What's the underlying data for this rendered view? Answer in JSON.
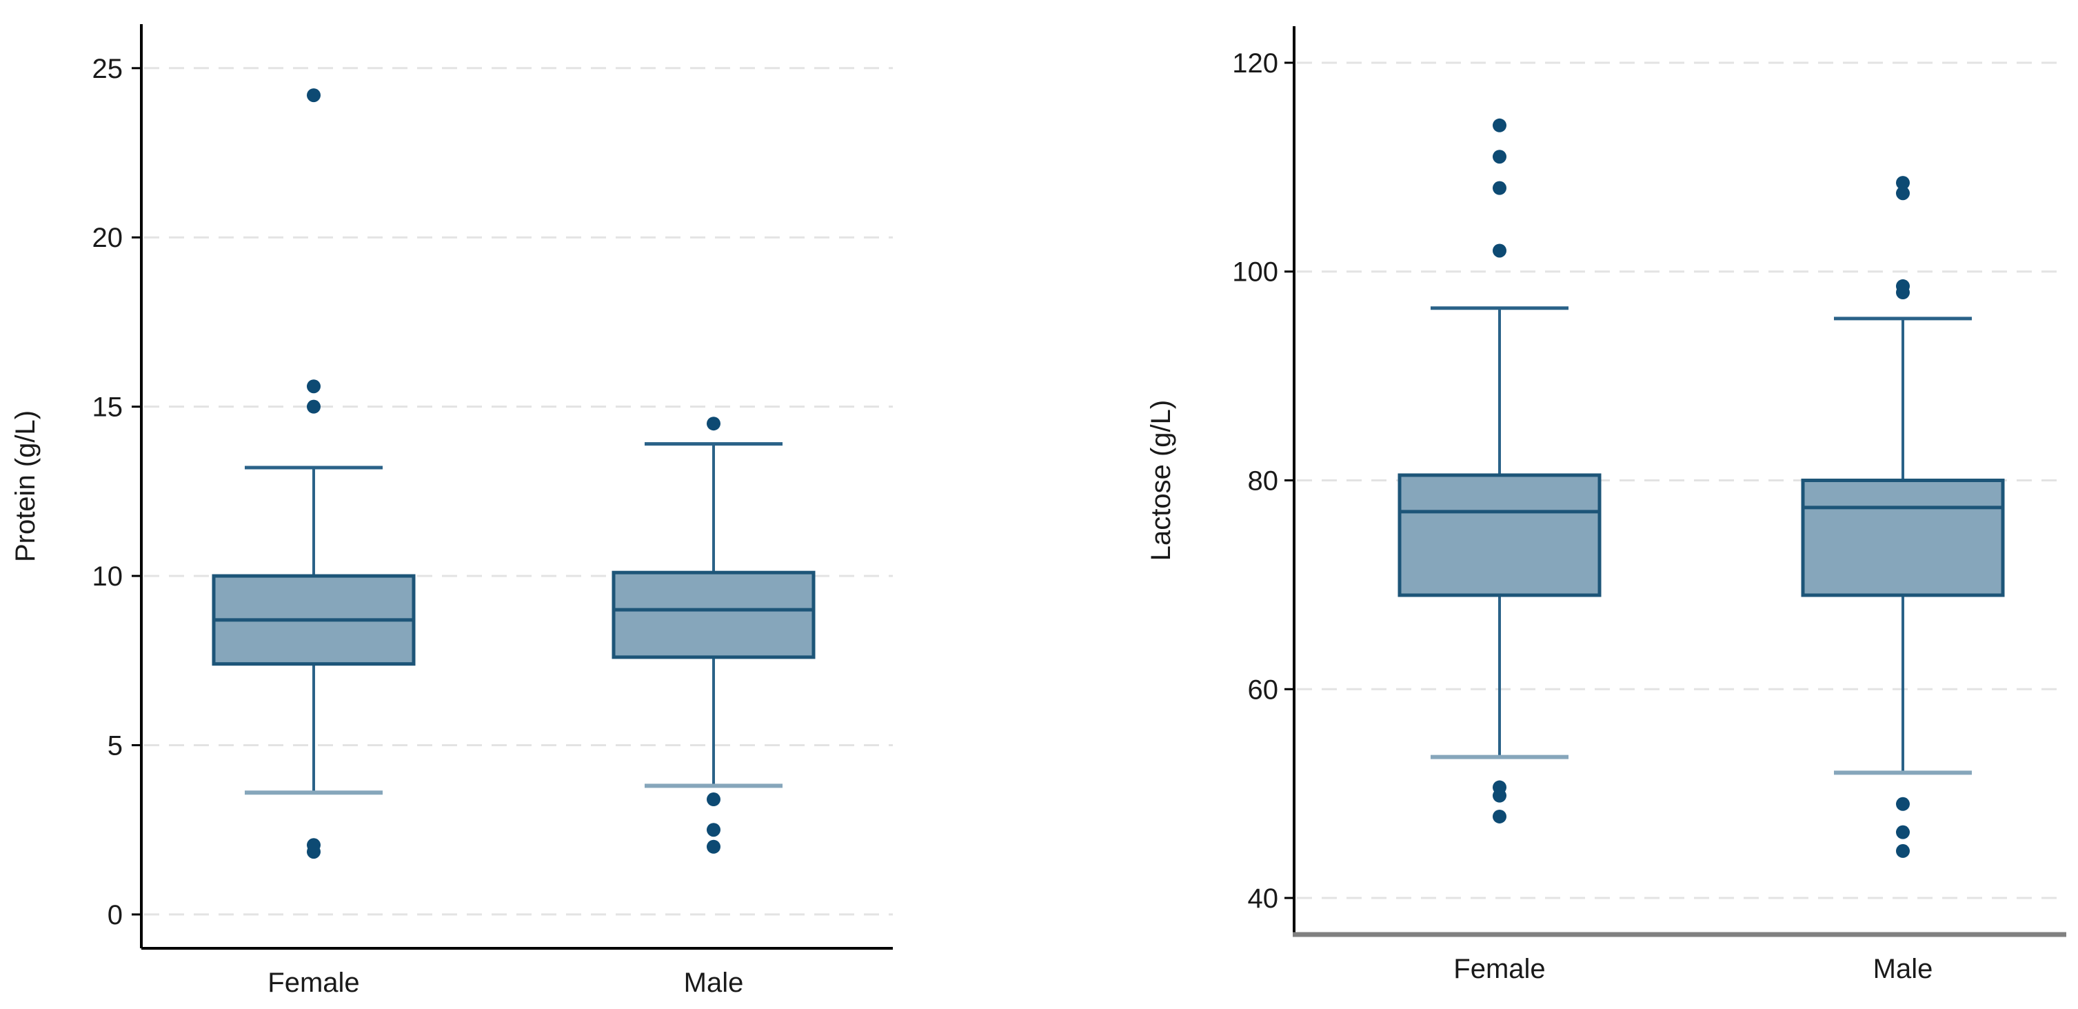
{
  "colors": {
    "box_fill": "#86a6bb",
    "box_stroke": "#1d5578",
    "whisker": "#2a6288",
    "outlier": "#0d4a73",
    "grid": "#e3e3e3",
    "axis": "#000000",
    "bottom_axis_right": "#808080"
  },
  "chart_data": [
    {
      "type": "box",
      "title": "",
      "xlabel": "",
      "ylabel": "Protein (g/L)",
      "ylim": [
        -1,
        26.3
      ],
      "yticks": [
        0,
        5,
        10,
        15,
        20,
        25
      ],
      "ytick_labels": [
        "0",
        "5",
        "10",
        "15",
        "20",
        "25"
      ],
      "grid": true,
      "categories": [
        "Female",
        "Male"
      ],
      "boxes": [
        {
          "category": "Female",
          "whisker_low": 3.6,
          "q1": 7.4,
          "median": 8.7,
          "q3": 10.0,
          "whisker_high": 13.2,
          "outliers": [
            1.85,
            2.05,
            15.0,
            15.6,
            24.2
          ]
        },
        {
          "category": "Male",
          "whisker_low": 3.8,
          "q1": 7.6,
          "median": 9.0,
          "q3": 10.1,
          "whisker_high": 13.9,
          "outliers": [
            2.0,
            2.5,
            3.4,
            14.5
          ]
        }
      ]
    },
    {
      "type": "box",
      "title": "",
      "xlabel": "",
      "ylabel": "Lactose (g/L)",
      "ylim": [
        36.5,
        123.5
      ],
      "yticks": [
        40,
        60,
        80,
        100,
        120
      ],
      "ytick_labels": [
        "40",
        "60",
        "80",
        "100",
        "120"
      ],
      "grid": true,
      "categories": [
        "Female",
        "Male"
      ],
      "boxes": [
        {
          "category": "Female",
          "whisker_low": 53.5,
          "q1": 69.0,
          "median": 77.0,
          "q3": 80.5,
          "whisker_high": 96.5,
          "outliers": [
            47.8,
            49.8,
            50.6,
            102.0,
            108.0,
            111.0,
            114.0
          ]
        },
        {
          "category": "Male",
          "whisker_low": 52.0,
          "q1": 69.0,
          "median": 77.4,
          "q3": 80.0,
          "whisker_high": 95.5,
          "outliers": [
            44.5,
            46.3,
            49.0,
            98.0,
            98.6,
            107.5,
            108.5
          ]
        }
      ]
    }
  ]
}
